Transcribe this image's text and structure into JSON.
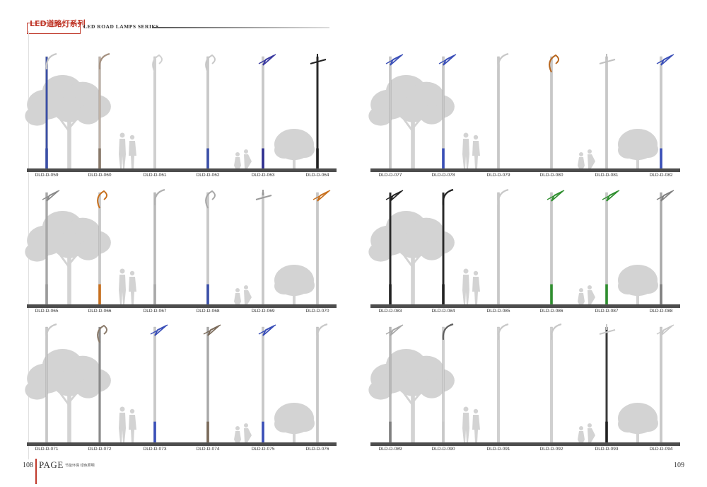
{
  "header": {
    "brand": "LED道路灯系列",
    "series": "LED ROAD LAMPS SERIES"
  },
  "footer": {
    "left_page": "108",
    "page_word": "PAGE",
    "tagline": "节能环保 绿色照明",
    "right_page": "109"
  },
  "colors": {
    "accent": "#c0392b",
    "pole": "#bfbfbf",
    "ground": "#4d4d4d",
    "silhouette": "#d3d3d3"
  },
  "panels": [
    {
      "id": "p1",
      "lamps": [
        {
          "code": "DLD-D-059",
          "arm": "curve",
          "head": "#c8c8c8",
          "base": "#3a4fa8",
          "pole": "#3a4fa8"
        },
        {
          "code": "DLD-D-060",
          "arm": "curve",
          "head": "#a69282",
          "base": "#8a7a6a",
          "pole": "#c0b3a8"
        },
        {
          "code": "DLD-D-061",
          "arm": "scroll",
          "head": "#d0d0d0",
          "base": "",
          "pole": "#cfcfcf"
        },
        {
          "code": "DLD-D-062",
          "arm": "scroll",
          "head": "#c8c8c8",
          "base": "#3a4fa8",
          "pole": "#c8c8c8"
        },
        {
          "code": "DLD-D-063",
          "arm": "frame",
          "head": "#3a3aa0",
          "base": "#2e2e90",
          "pole": "#c8c8c8"
        },
        {
          "code": "DLD-D-064",
          "arm": "double",
          "head": "#222222",
          "base": "#222222",
          "pole": "#2a2a2a"
        }
      ]
    },
    {
      "id": "p2",
      "lamps": [
        {
          "code": "DLD-D-077",
          "arm": "frame",
          "head": "#3a4fb8",
          "base": "",
          "pole": "#c8c8c8"
        },
        {
          "code": "DLD-D-078",
          "arm": "frame",
          "head": "#3a4fb8",
          "base": "#3a4fb8",
          "pole": "#c8c8c8"
        },
        {
          "code": "DLD-D-079",
          "arm": "curve",
          "head": "#c8c8c8",
          "base": "",
          "pole": "#c8c8c8"
        },
        {
          "code": "DLD-D-080",
          "arm": "scroll",
          "head": "#b8661e",
          "base": "",
          "pole": "#c8c8c8"
        },
        {
          "code": "DLD-D-081",
          "arm": "double",
          "head": "#c0c0c0",
          "base": "",
          "pole": "#c8c8c8"
        },
        {
          "code": "DLD-D-082",
          "arm": "frame",
          "head": "#3a4fb8",
          "base": "#3a4fb8",
          "pole": "#c8c8c8"
        }
      ]
    },
    {
      "id": "p3",
      "lamps": [
        {
          "code": "DLD-D-065",
          "arm": "frame",
          "head": "#8a8a8a",
          "base": "#9a9a9a",
          "pole": "#a8a8a8"
        },
        {
          "code": "DLD-D-066",
          "arm": "scroll",
          "head": "#c8701e",
          "base": "#c8701e",
          "pole": "#c8c8c8"
        },
        {
          "code": "DLD-D-067",
          "arm": "curve",
          "head": "#b0b0b0",
          "base": "#a8a8a8",
          "pole": "#b8b8b8"
        },
        {
          "code": "DLD-D-068",
          "arm": "scroll",
          "head": "#a8a8a8",
          "base": "#3a4fa8",
          "pole": "#c8c8c8"
        },
        {
          "code": "DLD-D-069",
          "arm": "double",
          "head": "#9a9a9a",
          "base": "",
          "pole": "#c8c8c8"
        },
        {
          "code": "DLD-D-070",
          "arm": "frame",
          "head": "#c8701e",
          "base": "",
          "pole": "#c8c8c8"
        }
      ]
    },
    {
      "id": "p4",
      "lamps": [
        {
          "code": "DLD-D-083",
          "arm": "frame",
          "head": "#222222",
          "base": "#222222",
          "pole": "#2a2a2a"
        },
        {
          "code": "DLD-D-084",
          "arm": "curve",
          "head": "#222222",
          "base": "#222222",
          "pole": "#2a2a2a"
        },
        {
          "code": "DLD-D-085",
          "arm": "curve",
          "head": "#c8c8c8",
          "base": "",
          "pole": "#c8c8c8"
        },
        {
          "code": "DLD-D-086",
          "arm": "frame",
          "head": "#2f8f2f",
          "base": "#2f8f2f",
          "pole": "#c8c8c8"
        },
        {
          "code": "DLD-D-087",
          "arm": "frame",
          "head": "#2f8f2f",
          "base": "#2f8f2f",
          "pole": "#c8c8c8"
        },
        {
          "code": "DLD-D-088",
          "arm": "frame",
          "head": "#808080",
          "base": "#808080",
          "pole": "#a8a8a8"
        }
      ]
    },
    {
      "id": "p5",
      "lamps": [
        {
          "code": "DLD-D-071",
          "arm": "curve",
          "head": "#c8c8c8",
          "base": "",
          "pole": "#c8c8c8"
        },
        {
          "code": "DLD-D-072",
          "arm": "scroll",
          "head": "#8a7a6a",
          "base": "",
          "pole": "#8a8a8a"
        },
        {
          "code": "DLD-D-073",
          "arm": "frame",
          "head": "#3a4fb8",
          "base": "#3a4fb8",
          "pole": "#c8c8c8"
        },
        {
          "code": "DLD-D-074",
          "arm": "frame",
          "head": "#7a6a5a",
          "base": "#7a6a5a",
          "pole": "#a8a8a8"
        },
        {
          "code": "DLD-D-075",
          "arm": "frame",
          "head": "#3a4fb8",
          "base": "#3a4fb8",
          "pole": "#c8c8c8"
        },
        {
          "code": "DLD-D-076",
          "arm": "curve",
          "head": "#c8c8c8",
          "base": "",
          "pole": "#c8c8c8"
        }
      ]
    },
    {
      "id": "p6",
      "lamps": [
        {
          "code": "DLD-D-089",
          "arm": "frame",
          "head": "#a8a8a8",
          "base": "#808080",
          "pole": "#b8b8b8"
        },
        {
          "code": "DLD-D-090",
          "arm": "curve",
          "head": "#606060",
          "base": "#c8c8c8",
          "pole": "#d0d0d0"
        },
        {
          "code": "DLD-D-091",
          "arm": "curve",
          "head": "#c8c8c8",
          "base": "",
          "pole": "#d0d0d0"
        },
        {
          "code": "DLD-D-092",
          "arm": "curve",
          "head": "#c8c8c8",
          "base": "",
          "pole": "#d0d0d0"
        },
        {
          "code": "DLD-D-093",
          "arm": "double",
          "head": "#c8c8c8",
          "base": "#222222",
          "pole": "#3a3a3a"
        },
        {
          "code": "DLD-D-094",
          "arm": "frame",
          "head": "#c8c8c8",
          "base": "",
          "pole": "#c8c8c8"
        }
      ]
    }
  ]
}
